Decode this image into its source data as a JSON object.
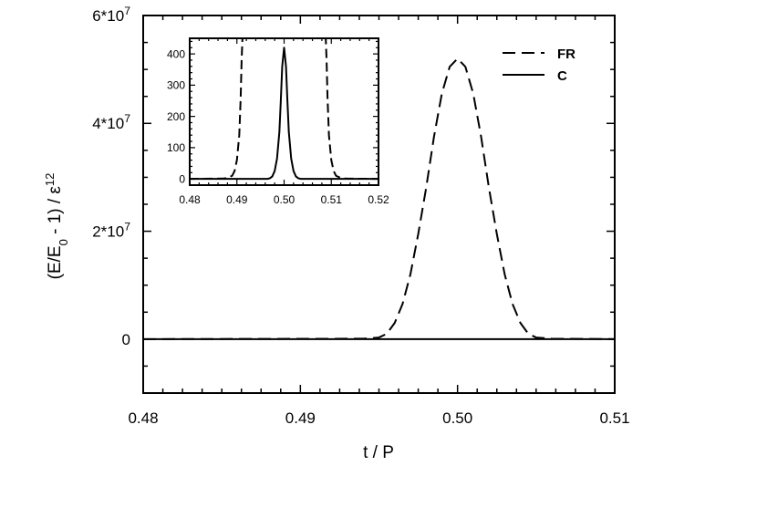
{
  "chart_data": {
    "type": "line",
    "main": {
      "xlabel": "t / P",
      "ylabel": {
        "open": "(E/E",
        "sub": "0",
        "mid": " - 1) / ε",
        "sup": "12"
      },
      "xlim": [
        0.48,
        0.51
      ],
      "ylim": [
        -10000000,
        60000000
      ],
      "xticks": [
        {
          "value": 0.48,
          "label": "0.48"
        },
        {
          "value": 0.49,
          "label": "0.49"
        },
        {
          "value": 0.5,
          "label": "0.50"
        },
        {
          "value": 0.51,
          "label": "0.51"
        }
      ],
      "yticks": [
        {
          "value": 0,
          "base": "0",
          "exp": ""
        },
        {
          "value": 20000000,
          "base": "2*10",
          "exp": "7"
        },
        {
          "value": 40000000,
          "base": "4*10",
          "exp": "7"
        },
        {
          "value": 60000000,
          "base": "6*10",
          "exp": "7"
        }
      ],
      "legend": {
        "position": "top-right",
        "entries": [
          {
            "label": "FR",
            "style": "dashed"
          },
          {
            "label": "C",
            "style": "solid"
          }
        ]
      },
      "series": [
        {
          "name": "FR",
          "style": "dashed",
          "x": [
            0.48,
            0.494,
            0.495,
            0.4955,
            0.496,
            0.4965,
            0.497,
            0.4975,
            0.498,
            0.4985,
            0.499,
            0.4995,
            0.5,
            0.5005,
            0.501,
            0.5015,
            0.502,
            0.5025,
            0.503,
            0.5035,
            0.504,
            0.5045,
            0.505,
            0.506,
            0.51
          ],
          "y": [
            0,
            80000,
            300000,
            1000000,
            3000000,
            6500000,
            12000000,
            19500000,
            28000000,
            37500000,
            45500000,
            50500000,
            52000000,
            50500000,
            45500000,
            37500000,
            28000000,
            19500000,
            12000000,
            6500000,
            3000000,
            1000000,
            300000,
            80000,
            0
          ]
        },
        {
          "name": "C",
          "style": "solid",
          "x": [
            0.48,
            0.51
          ],
          "y": [
            0,
            0
          ]
        }
      ]
    },
    "inset": {
      "xlim": [
        0.48,
        0.52
      ],
      "ylim": [
        -20,
        450
      ],
      "xticks": [
        {
          "value": 0.48,
          "label": "0.48"
        },
        {
          "value": 0.49,
          "label": "0.49"
        },
        {
          "value": 0.5,
          "label": "0.50"
        },
        {
          "value": 0.51,
          "label": "0.51"
        },
        {
          "value": 0.52,
          "label": "0.52"
        }
      ],
      "yticks": [
        {
          "value": 0,
          "label": "0"
        },
        {
          "value": 100,
          "label": "100"
        },
        {
          "value": 200,
          "label": "200"
        },
        {
          "value": 300,
          "label": "300"
        },
        {
          "value": 400,
          "label": "400"
        }
      ],
      "series": [
        {
          "name": "FR",
          "style": "dashed",
          "x": [
            0.48,
            0.487,
            0.488,
            0.489,
            0.4895,
            0.49,
            0.4905,
            0.4908,
            0.491,
            0.4912
          ],
          "y": [
            0,
            1,
            3,
            10,
            25,
            60,
            140,
            260,
            380,
            460
          ]
        },
        {
          "name": "FR",
          "style": "dashed",
          "x": [
            0.5088,
            0.509,
            0.5092,
            0.5095,
            0.51,
            0.5105,
            0.511,
            0.512,
            0.513,
            0.52
          ],
          "y": [
            460,
            380,
            260,
            140,
            60,
            25,
            10,
            3,
            1,
            0
          ]
        },
        {
          "name": "C",
          "style": "solid",
          "x": [
            0.48,
            0.4965,
            0.497,
            0.4975,
            0.498,
            0.4985,
            0.499,
            0.4993,
            0.4996,
            0.5,
            0.5004,
            0.5007,
            0.501,
            0.5015,
            0.502,
            0.5025,
            0.503,
            0.5035,
            0.52
          ],
          "y": [
            0,
            0,
            2,
            8,
            25,
            65,
            150,
            250,
            360,
            420,
            360,
            250,
            150,
            65,
            25,
            8,
            2,
            0,
            0
          ]
        }
      ]
    }
  }
}
